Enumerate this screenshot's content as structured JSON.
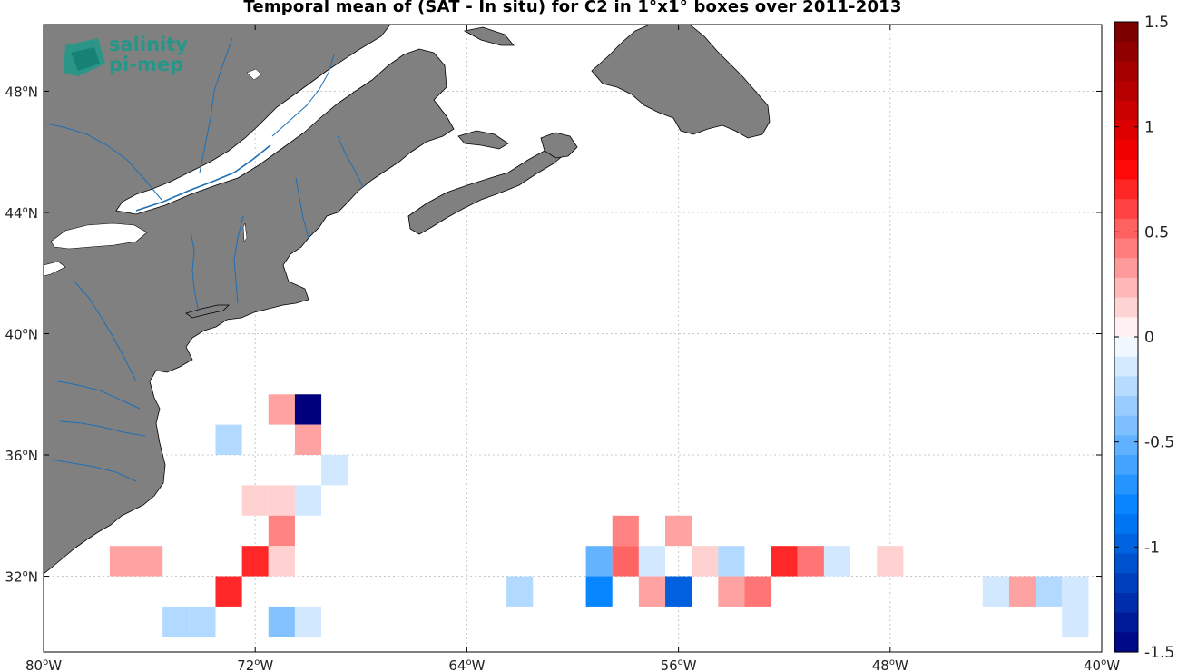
{
  "title": "Temporal mean of (SAT - In situ) for C2 in 1°x1° boxes over 2011-2013",
  "logo": {
    "line1": "salinity",
    "line2": "pi-mep"
  },
  "colors": {
    "land": "#808080",
    "coast": "#000000",
    "rivers": "#1f6fb4",
    "grid": "#c8c8c8"
  },
  "chart_data": {
    "type": "heatmap",
    "projection": "equirectangular",
    "lon_range": [
      -80,
      -40
    ],
    "lat_range": [
      29.5,
      50.2
    ],
    "x_ticks": [
      {
        "value": -80,
        "label": "80°W"
      },
      {
        "value": -72,
        "label": "72°W"
      },
      {
        "value": -64,
        "label": "64°W"
      },
      {
        "value": -56,
        "label": "56°W"
      },
      {
        "value": -48,
        "label": "48°W"
      },
      {
        "value": -40,
        "label": "40°W"
      }
    ],
    "y_ticks": [
      {
        "value": 32,
        "label": "32°N"
      },
      {
        "value": 36,
        "label": "36°N"
      },
      {
        "value": 40,
        "label": "40°N"
      },
      {
        "value": 44,
        "label": "44°N"
      },
      {
        "value": 48,
        "label": "48°N"
      }
    ],
    "grid": true,
    "colorbar": {
      "min": -1.5,
      "max": 1.5,
      "levels": 32,
      "placement": "right",
      "ticks": [
        {
          "value": 1.5,
          "label": "1.5"
        },
        {
          "value": 1.0,
          "label": "1"
        },
        {
          "value": 0.5,
          "label": "0.5"
        },
        {
          "value": 0.0,
          "label": "0"
        },
        {
          "value": -0.5,
          "label": "-0.5"
        },
        {
          "value": -1.0,
          "label": "-1"
        },
        {
          "value": -1.5,
          "label": "-1.5"
        }
      ]
    },
    "cells": [
      {
        "lon": -71,
        "lat": 37.5,
        "value": 0.3
      },
      {
        "lon": -70,
        "lat": 37.5,
        "value": -1.5
      },
      {
        "lon": -73,
        "lat": 36.5,
        "value": -0.25
      },
      {
        "lon": -70,
        "lat": 36.5,
        "value": 0.3
      },
      {
        "lon": -69,
        "lat": 35.5,
        "value": -0.15
      },
      {
        "lon": -72,
        "lat": 34.5,
        "value": 0.15
      },
      {
        "lon": -71,
        "lat": 34.5,
        "value": 0.15
      },
      {
        "lon": -70,
        "lat": 34.5,
        "value": -0.15
      },
      {
        "lon": -71,
        "lat": 33.5,
        "value": 0.4
      },
      {
        "lon": -77,
        "lat": 32.5,
        "value": 0.3
      },
      {
        "lon": -76,
        "lat": 32.5,
        "value": 0.3
      },
      {
        "lon": -72,
        "lat": 32.5,
        "value": 0.7
      },
      {
        "lon": -71,
        "lat": 32.5,
        "value": 0.15
      },
      {
        "lon": -73,
        "lat": 31.5,
        "value": 0.7
      },
      {
        "lon": -75,
        "lat": 30.5,
        "value": -0.25
      },
      {
        "lon": -74,
        "lat": 30.5,
        "value": -0.25
      },
      {
        "lon": -71,
        "lat": 30.5,
        "value": -0.4
      },
      {
        "lon": -70,
        "lat": 30.5,
        "value": -0.15
      },
      {
        "lon": -58,
        "lat": 33.5,
        "value": 0.4
      },
      {
        "lon": -56,
        "lat": 33.5,
        "value": 0.3
      },
      {
        "lon": -59,
        "lat": 32.5,
        "value": -0.5
      },
      {
        "lon": -58,
        "lat": 32.5,
        "value": 0.5
      },
      {
        "lon": -57,
        "lat": 32.5,
        "value": -0.15
      },
      {
        "lon": -55,
        "lat": 32.5,
        "value": 0.15
      },
      {
        "lon": -54,
        "lat": 32.5,
        "value": -0.25
      },
      {
        "lon": -52,
        "lat": 32.5,
        "value": 0.7
      },
      {
        "lon": -51,
        "lat": 32.5,
        "value": 0.45
      },
      {
        "lon": -50,
        "lat": 32.5,
        "value": -0.15
      },
      {
        "lon": -48,
        "lat": 32.5,
        "value": 0.15
      },
      {
        "lon": -62,
        "lat": 31.5,
        "value": -0.25
      },
      {
        "lon": -59,
        "lat": 31.5,
        "value": -0.8
      },
      {
        "lon": -57,
        "lat": 31.5,
        "value": 0.3
      },
      {
        "lon": -56,
        "lat": 31.5,
        "value": -1.0
      },
      {
        "lon": -54,
        "lat": 31.5,
        "value": 0.3
      },
      {
        "lon": -53,
        "lat": 31.5,
        "value": 0.45
      },
      {
        "lon": -44,
        "lat": 31.5,
        "value": -0.15
      },
      {
        "lon": -43,
        "lat": 31.5,
        "value": 0.3
      },
      {
        "lon": -42,
        "lat": 31.5,
        "value": -0.25
      },
      {
        "lon": -41,
        "lat": 31.5,
        "value": -0.15
      },
      {
        "lon": -41,
        "lat": 30.5,
        "value": -0.15
      }
    ]
  }
}
